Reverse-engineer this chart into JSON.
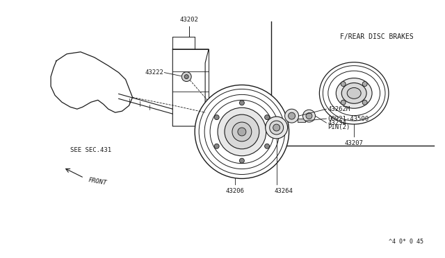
{
  "bg_color": "#ffffff",
  "line_color": "#1a1a1a",
  "fig_width": 6.4,
  "fig_height": 3.72,
  "dpi": 100,
  "inset_label": "F/REAR DISC BRAKES",
  "footer": "^4 0* 0 45",
  "see_sec431": "SEE SEC.431",
  "front_label": "FRONT",
  "font_size_label": 6.5,
  "font_size_inset_title": 7.5,
  "font_size_footer": 6.0
}
